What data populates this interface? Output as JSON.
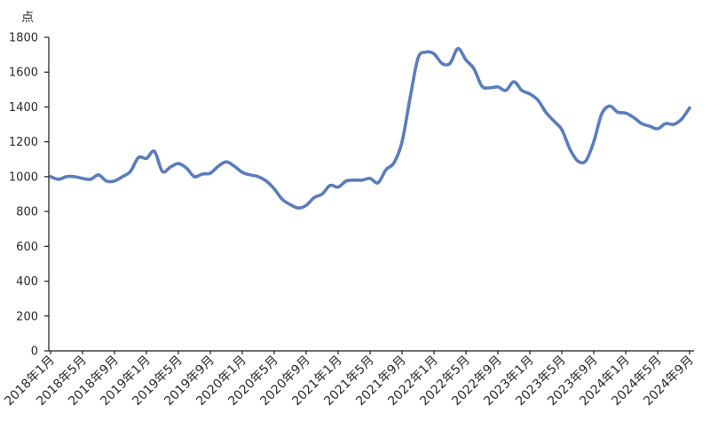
{
  "chart_data": {
    "type": "line",
    "ylabel": "点",
    "ylim": [
      0,
      1800
    ],
    "yticks": [
      0,
      200,
      400,
      600,
      800,
      1000,
      1200,
      1400,
      1600,
      1800
    ],
    "grid": false,
    "legend": "none",
    "x": [
      "2018年1月",
      "2018年2月",
      "2018年3月",
      "2018年4月",
      "2018年5月",
      "2018年6月",
      "2018年7月",
      "2018年8月",
      "2018年9月",
      "2018年10月",
      "2018年11月",
      "2018年12月",
      "2019年1月",
      "2019年2月",
      "2019年3月",
      "2019年4月",
      "2019年5月",
      "2019年6月",
      "2019年7月",
      "2019年8月",
      "2019年9月",
      "2019年10月",
      "2019年11月",
      "2019年12月",
      "2020年1月",
      "2020年2月",
      "2020年3月",
      "2020年4月",
      "2020年5月",
      "2020年6月",
      "2020年7月",
      "2020年8月",
      "2020年9月",
      "2020年10月",
      "2020年11月",
      "2020年12月",
      "2021年1月",
      "2021年2月",
      "2021年3月",
      "2021年4月",
      "2021年5月",
      "2021年6月",
      "2021年7月",
      "2021年8月",
      "2021年9月",
      "2021年10月",
      "2021年11月",
      "2021年12月",
      "2022年1月",
      "2022年2月",
      "2022年3月",
      "2022年4月",
      "2022年5月",
      "2022年6月",
      "2022年7月",
      "2022年8月",
      "2022年9月",
      "2022年10月",
      "2022年11月",
      "2022年12月",
      "2023年1月",
      "2023年2月",
      "2023年3月",
      "2023年4月",
      "2023年5月",
      "2023年6月",
      "2023年7月",
      "2023年8月",
      "2023年9月",
      "2023年10月",
      "2023年11月",
      "2023年12月",
      "2024年1月",
      "2024年2月",
      "2024年3月",
      "2024年4月",
      "2024年5月",
      "2024年6月",
      "2024年7月",
      "2024年8月",
      "2024年9月"
    ],
    "xticks": [
      "2018年1月",
      "2018年5月",
      "2018年9月",
      "2019年1月",
      "2019年5月",
      "2019年9月",
      "2020年1月",
      "2020年5月",
      "2020年9月",
      "2021年1月",
      "2021年5月",
      "2021年9月",
      "2022年1月",
      "2022年5月",
      "2022年9月",
      "2023年1月",
      "2023年5月",
      "2023年9月",
      "2024年1月",
      "2024年5月",
      "2024年9月"
    ],
    "series": [
      {
        "color": "#5b7cbd",
        "values": [
          1000,
          985,
          1000,
          1000,
          990,
          985,
          1010,
          975,
          975,
          1000,
          1030,
          1110,
          1105,
          1145,
          1030,
          1055,
          1075,
          1050,
          1000,
          1015,
          1020,
          1060,
          1085,
          1060,
          1025,
          1010,
          1000,
          975,
          930,
          870,
          840,
          820,
          835,
          880,
          900,
          950,
          940,
          975,
          980,
          980,
          990,
          965,
          1040,
          1080,
          1200,
          1450,
          1680,
          1715,
          1705,
          1650,
          1650,
          1735,
          1670,
          1620,
          1520,
          1510,
          1515,
          1495,
          1545,
          1495,
          1475,
          1440,
          1370,
          1320,
          1270,
          1160,
          1090,
          1090,
          1200,
          1360,
          1405,
          1370,
          1365,
          1340,
          1305,
          1290,
          1275,
          1305,
          1300,
          1330,
          1395
        ]
      }
    ]
  }
}
